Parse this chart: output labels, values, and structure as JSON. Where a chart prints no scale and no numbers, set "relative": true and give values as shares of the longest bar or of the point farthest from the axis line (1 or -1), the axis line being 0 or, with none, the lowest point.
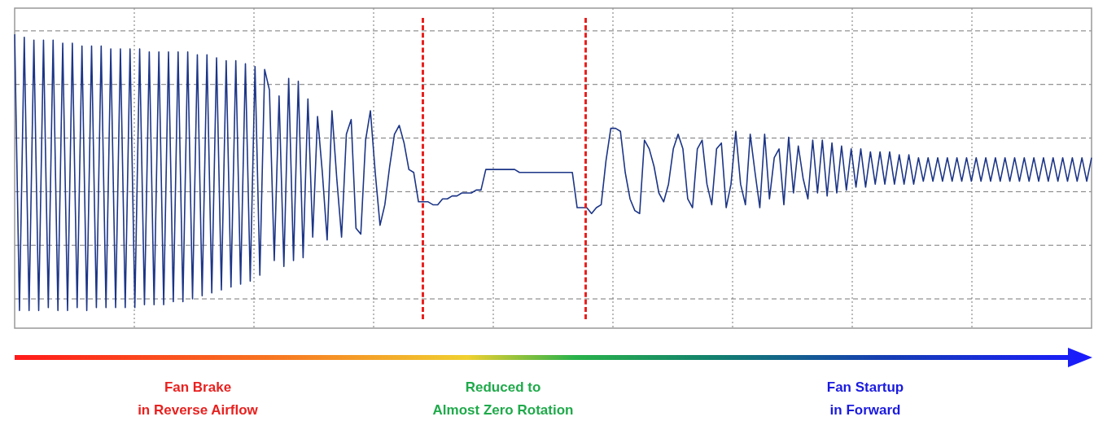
{
  "chart_data": {
    "type": "line",
    "relative": true,
    "grid": true,
    "legend": false,
    "marker": "none",
    "line_style": "solid",
    "categories": [
      null,
      null,
      null,
      null,
      null,
      null,
      null,
      null,
      null,
      null,
      null,
      null,
      null,
      null,
      null,
      null,
      null,
      null,
      null,
      null,
      null,
      null,
      null,
      null,
      null,
      null,
      null,
      null,
      null,
      null,
      null,
      null,
      null,
      null,
      null,
      null,
      null,
      null,
      null,
      null,
      null,
      null,
      null,
      null,
      null,
      null,
      null,
      null,
      null,
      null,
      null,
      null,
      null,
      null,
      null,
      null,
      null,
      null,
      null,
      null,
      null,
      null,
      null,
      null,
      null,
      null,
      null,
      null,
      null,
      null,
      null,
      null,
      null,
      null,
      null,
      null,
      null,
      null,
      null,
      null,
      null,
      null,
      null,
      null,
      null,
      null,
      null,
      null,
      null,
      null,
      null,
      null,
      null,
      null,
      null,
      null,
      null,
      null,
      null,
      null,
      null,
      null,
      null,
      null,
      null,
      null,
      null,
      null,
      null,
      null,
      null,
      null,
      null,
      null,
      null,
      null,
      null,
      null,
      null,
      null,
      null,
      null,
      null,
      null,
      null,
      null,
      null,
      null,
      null,
      null,
      null,
      null,
      null,
      null,
      null,
      null,
      null,
      null,
      null,
      null,
      null,
      null,
      null,
      null,
      null,
      null,
      null,
      null,
      null,
      null,
      null,
      null,
      null,
      null,
      null,
      null,
      null,
      null,
      null,
      null,
      null,
      null,
      null,
      null,
      null,
      null,
      null,
      null,
      null,
      null,
      null,
      null,
      null,
      null,
      null,
      null,
      null,
      null,
      null,
      null,
      null,
      null,
      null,
      null,
      null,
      null,
      null,
      null,
      null,
      null,
      null,
      null,
      null,
      null,
      null,
      null,
      null,
      null,
      null,
      null,
      null,
      null,
      null,
      null,
      null,
      null,
      null,
      null,
      null,
      null,
      null,
      null,
      null,
      null,
      null,
      null,
      null,
      null,
      null,
      null,
      null,
      null,
      null,
      null,
      null
    ],
    "series": [
      {
        "color": "#1c3587",
        "values": [
          1.0,
          0.06,
          0.99,
          0.06,
          0.98,
          0.06,
          0.98,
          0.07,
          0.98,
          0.06,
          0.97,
          0.06,
          0.97,
          0.07,
          0.96,
          0.06,
          0.96,
          0.07,
          0.96,
          0.07,
          0.95,
          0.07,
          0.95,
          0.07,
          0.95,
          0.07,
          0.95,
          0.08,
          0.94,
          0.08,
          0.94,
          0.08,
          0.94,
          0.09,
          0.94,
          0.09,
          0.94,
          0.1,
          0.93,
          0.11,
          0.93,
          0.12,
          0.92,
          0.13,
          0.91,
          0.14,
          0.91,
          0.15,
          0.9,
          0.16,
          0.89,
          0.18,
          0.88,
          0.81,
          0.23,
          0.79,
          0.21,
          0.85,
          0.23,
          0.84,
          0.24,
          0.78,
          0.31,
          0.72,
          0.53,
          0.3,
          0.74,
          0.51,
          0.31,
          0.66,
          0.71,
          0.34,
          0.32,
          0.64,
          0.74,
          0.53,
          0.35,
          0.42,
          0.55,
          0.66,
          0.69,
          0.63,
          0.54,
          0.53,
          0.43,
          0.43,
          0.43,
          0.42,
          0.42,
          0.44,
          0.44,
          0.45,
          0.45,
          0.46,
          0.46,
          0.46,
          0.47,
          0.47,
          0.54,
          0.54,
          0.54,
          0.54,
          0.54,
          0.54,
          0.54,
          0.53,
          0.53,
          0.53,
          0.53,
          0.53,
          0.53,
          0.53,
          0.53,
          0.53,
          0.53,
          0.53,
          0.53,
          0.41,
          0.41,
          0.41,
          0.39,
          0.41,
          0.42,
          0.57,
          0.68,
          0.68,
          0.67,
          0.53,
          0.44,
          0.4,
          0.39,
          0.64,
          0.61,
          0.55,
          0.46,
          0.43,
          0.49,
          0.61,
          0.66,
          0.61,
          0.44,
          0.41,
          0.61,
          0.64,
          0.49,
          0.42,
          0.61,
          0.63,
          0.41,
          0.49,
          0.67,
          0.49,
          0.42,
          0.66,
          0.53,
          0.41,
          0.66,
          0.44,
          0.58,
          0.61,
          0.42,
          0.65,
          0.46,
          0.62,
          0.51,
          0.44,
          0.64,
          0.46,
          0.64,
          0.45,
          0.63,
          0.46,
          0.62,
          0.47,
          0.61,
          0.48,
          0.61,
          0.48,
          0.6,
          0.49,
          0.6,
          0.49,
          0.6,
          0.49,
          0.59,
          0.49,
          0.59,
          0.49,
          0.58,
          0.5,
          0.58,
          0.5,
          0.58,
          0.5,
          0.58,
          0.5,
          0.58,
          0.5,
          0.58,
          0.5,
          0.58,
          0.5,
          0.58,
          0.5,
          0.58,
          0.5,
          0.58,
          0.5,
          0.58,
          0.5,
          0.58,
          0.5,
          0.58,
          0.5,
          0.58,
          0.5,
          0.58,
          0.5,
          0.58,
          0.5,
          0.58,
          0.5,
          0.58,
          0.5,
          0.58
        ]
      }
    ],
    "annotations": [
      "Fan Brake\nin Reverse Airflow",
      "Reduced to\nAlmost Zero Rotation",
      "Fan Startup\nin Forward"
    ]
  }
}
